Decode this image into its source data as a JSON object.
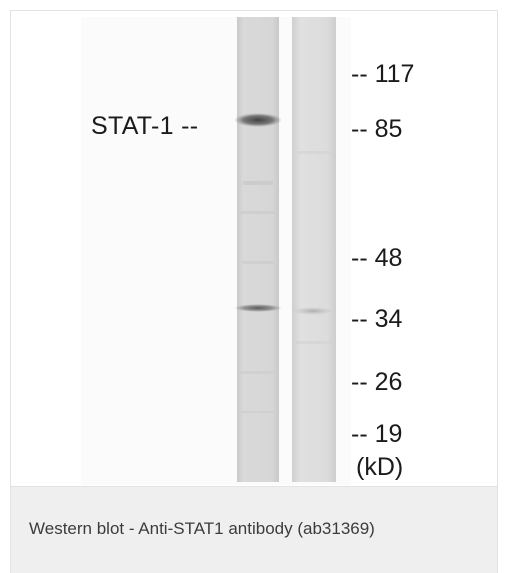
{
  "figure": {
    "band_label": "STAT-1 --",
    "markers": [
      "-- 117",
      "-- 85",
      "-- 48",
      "-- 34",
      "-- 26",
      "-- 19"
    ],
    "unit_label": "(kD)",
    "lane_count": 2
  },
  "caption": {
    "text": "Western blot - Anti-STAT1 antibody (ab31369)"
  },
  "colors": {
    "background": "#ffffff",
    "caption_background": "#efefef",
    "lane_tone": "#d6d6d6",
    "band_tone": "#555555",
    "text": "#1b1b1b",
    "caption_text": "#3c3c3c"
  }
}
